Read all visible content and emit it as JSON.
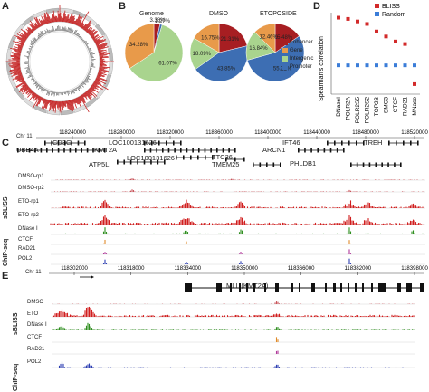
{
  "panels": {
    "a": "A",
    "b": "B",
    "c": "C",
    "d": "D",
    "e": "E"
  },
  "panel_b": {
    "legend": [
      "Enhancer",
      "Gene",
      "Intergenic",
      "Promoter"
    ],
    "colors": {
      "Enhancer": "#a71e22",
      "Gene": "#e89a4a",
      "Intergenic": "#a9d48e",
      "Promoter": "#3d6eb3"
    },
    "pies": [
      {
        "title": "Genome",
        "slices": [
          {
            "c": "Enhancer",
            "v": 3.38,
            "label": "3.38%"
          },
          {
            "c": "Promoter",
            "v": 1.27,
            "label": "1.27%"
          },
          {
            "c": "Intergenic",
            "v": 61.07,
            "label": "61.07%"
          },
          {
            "c": "Gene",
            "v": 34.28,
            "label": "34.28%"
          }
        ]
      },
      {
        "title": "DMSO",
        "slices": [
          {
            "c": "Enhancer",
            "v": 21.31,
            "label": "21.31%"
          },
          {
            "c": "Promoter",
            "v": 43.85,
            "label": "43.85%"
          },
          {
            "c": "Intergenic",
            "v": 18.09,
            "label": "18.09%"
          },
          {
            "c": "Gene",
            "v": 16.75,
            "label": "16.75%"
          }
        ]
      },
      {
        "title": "ETOPOSIDE",
        "slices": [
          {
            "c": "Enhancer",
            "v": 15.48,
            "label": "15.48%"
          },
          {
            "c": "Promoter",
            "v": 55.22,
            "label": "55.22%"
          },
          {
            "c": "Intergenic",
            "v": 16.84,
            "label": "16.84%"
          },
          {
            "c": "Gene",
            "v": 12.46,
            "label": "12.46%"
          }
        ]
      }
    ]
  },
  "chart_data": {
    "type": "scatter",
    "ylabel": "Spearman's correlation",
    "categories": [
      "DNaseI",
      "POLR2A",
      "POLR2S5",
      "POLR2S2",
      "TOP2B",
      "SMC3",
      "CTCF",
      "RAD21",
      "MNase"
    ],
    "series": [
      {
        "name": "BLISS",
        "color": "#d22a2a",
        "values": [
          0.71,
          0.7,
          0.68,
          0.66,
          0.6,
          0.56,
          0.52,
          0.5,
          0.18
        ]
      },
      {
        "name": "Random",
        "color": "#3b7dd8",
        "values": [
          0.33,
          0.33,
          0.33,
          0.33,
          0.33,
          0.33,
          0.33,
          0.33,
          0.33
        ]
      }
    ]
  },
  "panel_c": {
    "chr": "Chr 11",
    "coords": [
      "118240000",
      "118280000",
      "118320000",
      "118360000",
      "118400000",
      "118440000",
      "118480000",
      "118520000"
    ],
    "genes": [
      "CD3G",
      "UBE4A",
      "LOC100131626",
      "KMT2A",
      "ATP5L",
      "LOC100131626",
      "TTC36",
      "TMEM25",
      "IFT46",
      "ARCN1",
      "PHLDB1",
      "TREH"
    ],
    "group_sbliss": "sBLISS",
    "group_chip": "ChIP-seq",
    "tracks": [
      "DMSO-rp1",
      "DMSO-rp2",
      "ETO-rp1",
      "ETO-rp2",
      "DNase I",
      "CTCF",
      "RAD21",
      "POL2"
    ]
  },
  "panel_e": {
    "chr": "Chr 11",
    "coords": [
      "118302000",
      "118318000",
      "118334000",
      "118350000",
      "118366000",
      "118382000",
      "118398000"
    ],
    "gene": "MLL (KMT2A)",
    "group_sbliss": "sBLISS",
    "group_chip": "ChIP-seq",
    "tracks": [
      "DMSO",
      "ETO",
      "DNase I",
      "CTCF",
      "RAD21",
      "POL2"
    ]
  }
}
